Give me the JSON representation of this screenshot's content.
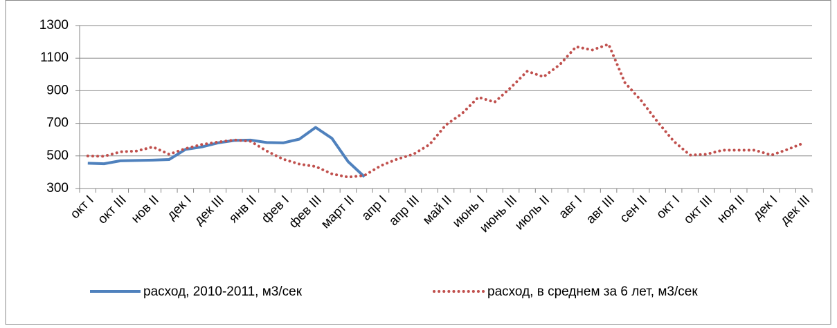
{
  "chart_data": {
    "type": "line",
    "categories": [
      "окт I",
      null,
      "окт III",
      null,
      "нов II",
      null,
      "дек I",
      null,
      "дек III",
      null,
      "янв II",
      null,
      "фев I",
      null,
      "фев III",
      null,
      "март II",
      null,
      "апр I",
      null,
      "апр III",
      null,
      "май II",
      null,
      "июнь I",
      null,
      "июнь III",
      null,
      "июль II",
      null,
      "авг I",
      null,
      "авг III",
      null,
      "сен II",
      null,
      "окт I",
      null,
      "окт III",
      null,
      "ноя II",
      null,
      "дек I",
      null,
      "дек III"
    ],
    "series": [
      {
        "name": "расход, 2010-2011, м3/сек",
        "color": "#4f81bd",
        "style": "solid",
        "values": [
          455,
          452,
          470,
          472,
          474,
          478,
          540,
          555,
          580,
          595,
          597,
          582,
          580,
          603,
          675,
          608,
          465,
          372,
          null,
          null,
          null,
          null,
          null,
          null,
          null,
          null,
          null,
          null,
          null,
          null,
          null,
          null,
          null,
          null,
          null,
          null,
          null,
          null,
          null,
          null,
          null,
          null,
          null,
          null,
          null
        ]
      },
      {
        "name": "расход, в среднем за 6 лет, м3/сек",
        "color": "#c0504d",
        "style": "dotted",
        "values": [
          500,
          498,
          525,
          530,
          555,
          510,
          545,
          570,
          585,
          598,
          590,
          530,
          480,
          450,
          435,
          390,
          370,
          380,
          440,
          480,
          510,
          570,
          690,
          760,
          860,
          830,
          920,
          1020,
          985,
          1060,
          1170,
          1150,
          1185,
          950,
          840,
          710,
          590,
          505,
          510,
          535,
          535,
          535,
          505,
          540,
          580
        ]
      }
    ],
    "ylim": [
      300,
      1300
    ],
    "yticks": [
      300,
      500,
      700,
      900,
      1100,
      1300
    ],
    "grid": true
  }
}
